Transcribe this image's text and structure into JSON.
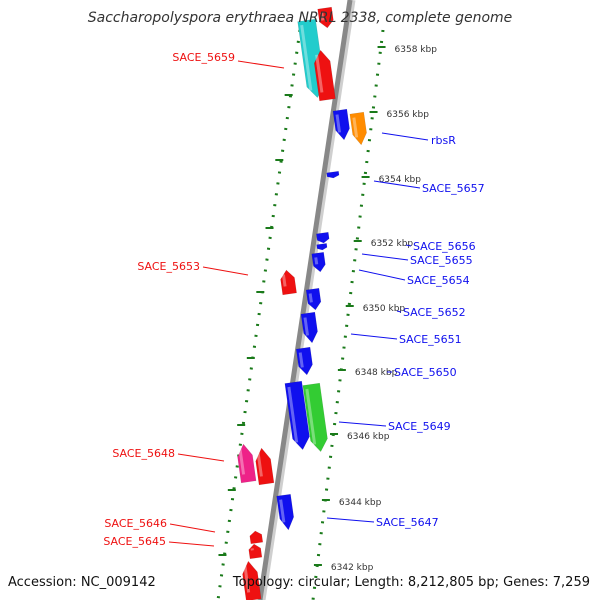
{
  "header": {
    "title": "Saccharopolyspora erythraea NRRL 2338, complete genome"
  },
  "footer": {
    "accession": "Accession: NC_009142",
    "stats": "Topology: circular; Length: 8,212,805 bp; Genes: 7,259"
  },
  "colors": {
    "forward_gene": "#ee1111",
    "reverse_gene": "#1010ee",
    "cyan_gene": "#22cccc",
    "orange_gene": "#ff8c00",
    "green_gene": "#33cc33",
    "magenta_gene": "#ee2288",
    "ruler": "#1a7a1a",
    "backbone": "#888888"
  },
  "ticks": [
    {
      "label": "6358 kbp",
      "kbp": 6358
    },
    {
      "label": "6356 kbp",
      "kbp": 6356
    },
    {
      "label": "6354 kbp",
      "kbp": 6354
    },
    {
      "label": "6352 kbp",
      "kbp": 6352
    },
    {
      "label": "6350 kbp",
      "kbp": 6350
    },
    {
      "label": "6348 kbp",
      "kbp": 6348
    },
    {
      "label": "6346 kbp",
      "kbp": 6346
    },
    {
      "label": "6344 kbp",
      "kbp": 6344
    },
    {
      "label": "6342 kbp",
      "kbp": 6342
    }
  ],
  "gene_labels": [
    {
      "name": "SACE_5659",
      "side": "left"
    },
    {
      "name": "rbsR",
      "side": "right"
    },
    {
      "name": "SACE_5657",
      "side": "right"
    },
    {
      "name": "SACE_5656",
      "side": "right"
    },
    {
      "name": "SACE_5655",
      "side": "right"
    },
    {
      "name": "SACE_5654",
      "side": "right"
    },
    {
      "name": "SACE_5653",
      "side": "left"
    },
    {
      "name": "SACE_5652",
      "side": "right"
    },
    {
      "name": "SACE_5651",
      "side": "right"
    },
    {
      "name": "SACE_5650",
      "side": "right"
    },
    {
      "name": "SACE_5649",
      "side": "right"
    },
    {
      "name": "SACE_5648",
      "side": "left"
    },
    {
      "name": "SACE_5647",
      "side": "right"
    },
    {
      "name": "SACE_5646",
      "side": "left"
    },
    {
      "name": "SACE_5645",
      "side": "left"
    }
  ]
}
